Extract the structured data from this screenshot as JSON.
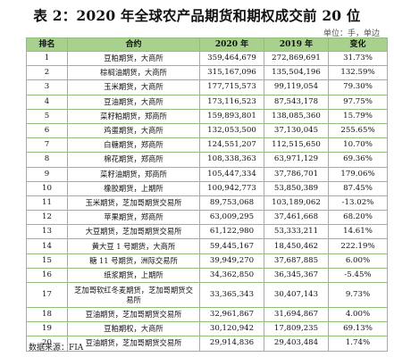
{
  "title": "表 2：2020 年全球农产品期货和期权成交前 20 位",
  "unit": "单位：手，单边",
  "table": {
    "headers": [
      "排名",
      "合约",
      "2020 年",
      "2019 年",
      "变化"
    ],
    "rows": [
      [
        "1",
        "豆粕期货，大商所",
        "359,464,679",
        "272,869,691",
        "31.73%"
      ],
      [
        "2",
        "棕榈油期货，大商所",
        "315,167,096",
        "135,504,196",
        "132.59%"
      ],
      [
        "3",
        "玉米期货，大商所",
        "177,715,573",
        "99,119,054",
        "79.30%"
      ],
      [
        "4",
        "豆油期货，大商所",
        "173,116,523",
        "87,543,178",
        "97.75%"
      ],
      [
        "5",
        "菜籽粕期货，郑商所",
        "159,893,801",
        "138,085,360",
        "15.79%"
      ],
      [
        "6",
        "鸡蛋期货，大商所",
        "132,053,500",
        "37,130,045",
        "255.65%"
      ],
      [
        "7",
        "白糖期货，郑商所",
        "124,551,207",
        "112,515,650",
        "10.70%"
      ],
      [
        "8",
        "棉花期货，郑商所",
        "108,338,363",
        "63,971,129",
        "69.36%"
      ],
      [
        "9",
        "菜籽油期货，郑商所",
        "105,447,334",
        "37,786,701",
        "179.06%"
      ],
      [
        "10",
        "橡胶期货，上期所",
        "100,942,773",
        "53,850,389",
        "87.45%"
      ],
      [
        "11",
        "玉米期货，芝加哥期货交易所",
        "89,753,068",
        "103,189,062",
        "-13.02%"
      ],
      [
        "12",
        "苹果期货，郑商所",
        "63,009,295",
        "37,461,668",
        "68.20%"
      ],
      [
        "13",
        "大豆期货，芝加哥期货交易所",
        "61,122,980",
        "53,333,211",
        "14.61%"
      ],
      [
        "14",
        "黄大豆 1 号期货，大商所",
        "59,445,167",
        "18,450,462",
        "222.19%"
      ],
      [
        "15",
        "糖 11 号期货，洲际交易所",
        "39,949,270",
        "37,687,885",
        "6.00%"
      ],
      [
        "16",
        "纸浆期货，上期所",
        "34,362,850",
        "36,345,367",
        "-5.45%"
      ],
      [
        "17",
        "芝加哥软红冬麦期货，芝加哥期货交易所",
        "33,365,343",
        "30,407,143",
        "9.73%"
      ],
      [
        "18",
        "豆油期货，芝加哥期货交易所",
        "32,961,867",
        "31,694,867",
        "4.00%"
      ],
      [
        "19",
        "豆粕期权，大商所",
        "30,120,942",
        "17,809,235",
        "69.13%"
      ],
      [
        "20",
        "豆油期货，芝加哥期货交易所",
        "29,914,836",
        "29,403,484",
        "1.74%"
      ]
    ]
  },
  "source": "数据来源：FIA"
}
